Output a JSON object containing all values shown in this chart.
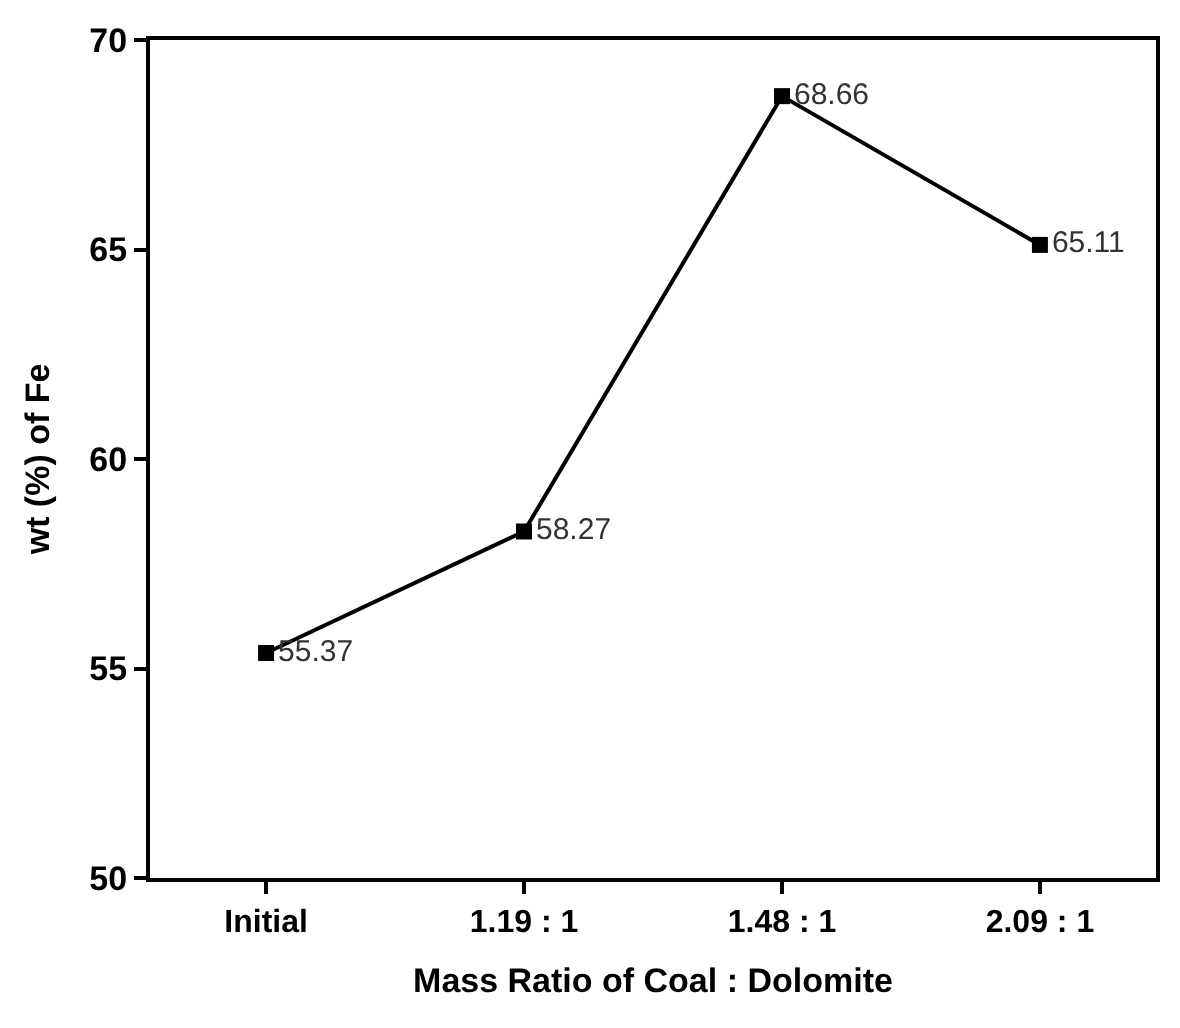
{
  "chart_data": {
    "type": "line",
    "xlabel": "Mass Ratio of Coal : Dolomite",
    "ylabel": "wt (%) of Fe",
    "categories": [
      "Initial",
      "1.19 : 1",
      "1.48 : 1",
      "2.09 : 1"
    ],
    "series": [
      {
        "color": "#000000",
        "values": [
          55.37,
          58.27,
          68.66,
          65.11
        ]
      }
    ],
    "ylim": [
      50,
      70
    ],
    "yticks": [
      50,
      55,
      60,
      65,
      70
    ],
    "marker": "square",
    "line_style": "solid",
    "data_labels": true
  }
}
